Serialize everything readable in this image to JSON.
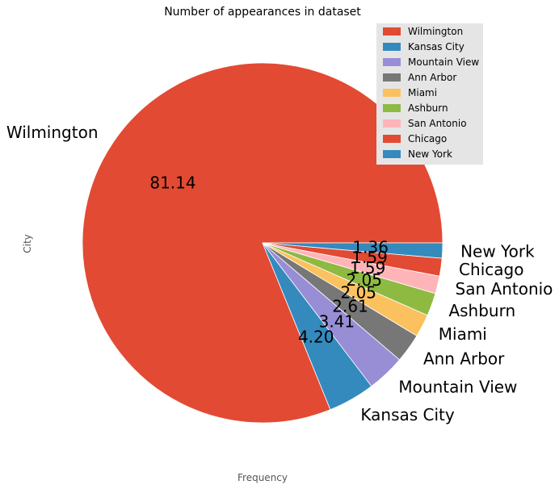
{
  "chart_data": {
    "type": "pie",
    "title": "Number of appearances in dataset",
    "xlabel": "Frequency",
    "ylabel": "City",
    "legend_position": "top-right",
    "slices": [
      {
        "label": "Wilmington",
        "value": 81.14,
        "pct_text": "81.14",
        "color": "#E24A33"
      },
      {
        "label": "Kansas City",
        "value": 4.2,
        "pct_text": "4.20",
        "color": "#348ABD"
      },
      {
        "label": "Mountain View",
        "value": 3.41,
        "pct_text": "3.41",
        "color": "#988ED5"
      },
      {
        "label": "Ann Arbor",
        "value": 2.61,
        "pct_text": "2.61",
        "color": "#777777"
      },
      {
        "label": "Miami",
        "value": 2.05,
        "pct_text": "2.05",
        "color": "#FBC15E"
      },
      {
        "label": "Ashburn",
        "value": 2.05,
        "pct_text": "2.05",
        "color": "#8EBA42"
      },
      {
        "label": "San Antonio",
        "value": 1.59,
        "pct_text": "1.59",
        "color": "#FFB5B8"
      },
      {
        "label": "Chicago",
        "value": 1.59,
        "pct_text": "1.59",
        "color": "#E24A33"
      },
      {
        "label": "New York",
        "value": 1.36,
        "pct_text": "1.36",
        "color": "#348ABD"
      }
    ]
  }
}
